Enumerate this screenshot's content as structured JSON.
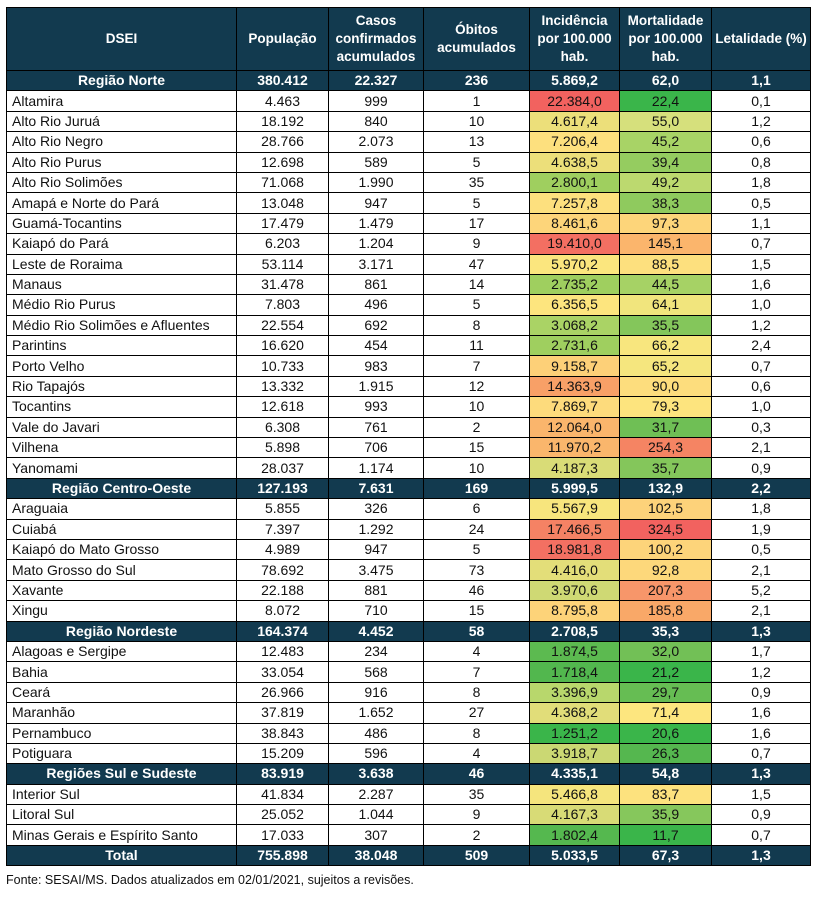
{
  "headers": [
    "DSEI",
    "População",
    "Casos confirmados acumulados",
    "Óbitos acumulados",
    "Incidência por 100.000 hab.",
    "Mortalidade por 100.000 hab.",
    "Letalidade (%)"
  ],
  "color_scale": {
    "green": "#3ab54a",
    "light_green": "#9fcf5f",
    "yellow": "#fde77f",
    "orange": "#f9a565",
    "red": "#f2625f"
  },
  "sections": [
    {
      "region": {
        "name": "Região Norte",
        "pop": "380.412",
        "cases": "22.327",
        "deaths": "236",
        "inc": "5.869,2",
        "mort": "62,0",
        "let": "1,1"
      },
      "rows": [
        {
          "name": "Altamira",
          "pop": "4.463",
          "cases": "999",
          "deaths": "1",
          "inc": "22.384,0",
          "mort": "22,4",
          "let": "0,1",
          "inc_color": "#f2625f",
          "mort_color": "#3ab54a"
        },
        {
          "name": "Alto Rio Juruá",
          "pop": "18.192",
          "cases": "840",
          "deaths": "10",
          "inc": "4.617,4",
          "mort": "55,0",
          "let": "1,2",
          "inc_color": "#ecdf7a",
          "mort_color": "#d6e07c"
        },
        {
          "name": "Alto Rio Negro",
          "pop": "28.766",
          "cases": "2.073",
          "deaths": "13",
          "inc": "7.206,4",
          "mort": "45,2",
          "let": "0,6",
          "inc_color": "#fde07e",
          "mort_color": "#a8d366"
        },
        {
          "name": "Alto Rio Purus",
          "pop": "12.698",
          "cases": "589",
          "deaths": "5",
          "inc": "4.638,5",
          "mort": "39,4",
          "let": "0,8",
          "inc_color": "#ecdf7a",
          "mort_color": "#95cc60"
        },
        {
          "name": "Alto Rio Solimões",
          "pop": "71.068",
          "cases": "1.990",
          "deaths": "35",
          "inc": "2.800,1",
          "mort": "49,2",
          "let": "1,8",
          "inc_color": "#9fcf5f",
          "mort_color": "#bcd96f"
        },
        {
          "name": "Amapá e Norte do Pará",
          "pop": "13.048",
          "cases": "947",
          "deaths": "5",
          "inc": "7.257,8",
          "mort": "38,3",
          "let": "0,5",
          "inc_color": "#fde07e",
          "mort_color": "#8fca5e"
        },
        {
          "name": "Guamá-Tocantins",
          "pop": "17.479",
          "cases": "1.479",
          "deaths": "17",
          "inc": "8.461,6",
          "mort": "97,3",
          "let": "1,1",
          "inc_color": "#fdd57a",
          "mort_color": "#fdd57a"
        },
        {
          "name": "Kaiapó do Pará",
          "pop": "6.203",
          "cases": "1.204",
          "deaths": "9",
          "inc": "19.410,0",
          "mort": "145,1",
          "let": "0,7",
          "inc_color": "#f36f62",
          "mort_color": "#fbb56c"
        },
        {
          "name": "Leste de Roraima",
          "pop": "53.114",
          "cases": "3.171",
          "deaths": "47",
          "inc": "5.970,2",
          "mort": "88,5",
          "let": "1,5",
          "inc_color": "#fbe67e",
          "mort_color": "#fde07e"
        },
        {
          "name": "Manaus",
          "pop": "31.478",
          "cases": "861",
          "deaths": "14",
          "inc": "2.735,2",
          "mort": "44,5",
          "let": "1,6",
          "inc_color": "#9fcf5f",
          "mort_color": "#a6d265"
        },
        {
          "name": "Médio Rio Purus",
          "pop": "7.803",
          "cases": "496",
          "deaths": "5",
          "inc": "6.356,5",
          "mort": "64,1",
          "let": "1,0",
          "inc_color": "#fde57e",
          "mort_color": "#f1e57d"
        },
        {
          "name": "Médio Rio Solimões e Afluentes",
          "pop": "22.554",
          "cases": "692",
          "deaths": "8",
          "inc": "3.068,2",
          "mort": "35,5",
          "let": "1,2",
          "inc_color": "#aad365",
          "mort_color": "#84c65b"
        },
        {
          "name": "Parintins",
          "pop": "16.620",
          "cases": "454",
          "deaths": "11",
          "inc": "2.731,6",
          "mort": "66,2",
          "let": "2,4",
          "inc_color": "#9fcf5f",
          "mort_color": "#f8e67e"
        },
        {
          "name": "Porto Velho",
          "pop": "10.733",
          "cases": "983",
          "deaths": "7",
          "inc": "9.158,7",
          "mort": "65,2",
          "let": "0,7",
          "inc_color": "#fdd078",
          "mort_color": "#f5e67e"
        },
        {
          "name": "Rio Tapajós",
          "pop": "13.332",
          "cases": "1.915",
          "deaths": "12",
          "inc": "14.363,9",
          "mort": "90,0",
          "let": "0,6",
          "inc_color": "#f8a067",
          "mort_color": "#fddd7d"
        },
        {
          "name": "Tocantins",
          "pop": "12.618",
          "cases": "993",
          "deaths": "10",
          "inc": "7.869,7",
          "mort": "79,3",
          "let": "1,0",
          "inc_color": "#fddb7c",
          "mort_color": "#fde47e"
        },
        {
          "name": "Vale do Javari",
          "pop": "6.308",
          "cases": "761",
          "deaths": "2",
          "inc": "12.064,0",
          "mort": "31,7",
          "let": "0,3",
          "inc_color": "#fab56c",
          "mort_color": "#6fbf55"
        },
        {
          "name": "Vilhena",
          "pop": "5.898",
          "cases": "706",
          "deaths": "15",
          "inc": "11.970,2",
          "mort": "254,3",
          "let": "2,1",
          "inc_color": "#fab66c",
          "mort_color": "#f58463"
        },
        {
          "name": "Yanomami",
          "pop": "28.037",
          "cases": "1.174",
          "deaths": "10",
          "inc": "4.187,3",
          "mort": "35,7",
          "let": "0,9",
          "inc_color": "#d9dc77",
          "mort_color": "#84c65b"
        }
      ]
    },
    {
      "region": {
        "name": "Região Centro-Oeste",
        "pop": "127.193",
        "cases": "7.631",
        "deaths": "169",
        "inc": "5.999,5",
        "mort": "132,9",
        "let": "2,2"
      },
      "rows": [
        {
          "name": "Araguaia",
          "pop": "5.855",
          "cases": "326",
          "deaths": "6",
          "inc": "5.567,9",
          "mort": "102,5",
          "let": "1,8",
          "inc_color": "#f7e57d",
          "mort_color": "#fdd27a"
        },
        {
          "name": "Cuiabá",
          "pop": "7.397",
          "cases": "1.292",
          "deaths": "24",
          "inc": "17.466,5",
          "mort": "324,5",
          "let": "1,9",
          "inc_color": "#f58264",
          "mort_color": "#f2625f"
        },
        {
          "name": "Kaiapó do Mato Grosso",
          "pop": "4.989",
          "cases": "947",
          "deaths": "5",
          "inc": "18.981,8",
          "mort": "100,2",
          "let": "0,5",
          "inc_color": "#f37062",
          "mort_color": "#fdd47a"
        },
        {
          "name": "Mato Grosso do Sul",
          "pop": "78.692",
          "cases": "3.475",
          "deaths": "73",
          "inc": "4.416,0",
          "mort": "92,8",
          "let": "2,1",
          "inc_color": "#e3de79",
          "mort_color": "#fdd87b"
        },
        {
          "name": "Xavante",
          "pop": "22.188",
          "cases": "881",
          "deaths": "46",
          "inc": "3.970,6",
          "mort": "207,3",
          "let": "5,2",
          "inc_color": "#cfd974",
          "mort_color": "#f7966a"
        },
        {
          "name": "Xingu",
          "pop": "8.072",
          "cases": "710",
          "deaths": "15",
          "inc": "8.795,8",
          "mort": "185,8",
          "let": "2,1",
          "inc_color": "#fdd379",
          "mort_color": "#f9a868"
        }
      ]
    },
    {
      "region": {
        "name": "Região Nordeste",
        "pop": "164.374",
        "cases": "4.452",
        "deaths": "58",
        "inc": "2.708,5",
        "mort": "35,3",
        "let": "1,3"
      },
      "rows": [
        {
          "name": "Alagoas e Sergipe",
          "pop": "12.483",
          "cases": "234",
          "deaths": "4",
          "inc": "1.874,5",
          "mort": "32,0",
          "let": "1,7",
          "inc_color": "#5cba50",
          "mort_color": "#72c056"
        },
        {
          "name": "Bahia",
          "pop": "33.054",
          "cases": "568",
          "deaths": "7",
          "inc": "1.718,4",
          "mort": "21,2",
          "let": "1,2",
          "inc_color": "#52b74e",
          "mort_color": "#3ab54a"
        },
        {
          "name": "Ceará",
          "pop": "26.966",
          "cases": "916",
          "deaths": "8",
          "inc": "3.396,9",
          "mort": "29,7",
          "let": "0,9",
          "inc_color": "#b8d76c",
          "mort_color": "#66bd53"
        },
        {
          "name": "Maranhão",
          "pop": "37.819",
          "cases": "1.652",
          "deaths": "27",
          "inc": "4.368,2",
          "mort": "71,4",
          "let": "1,6",
          "inc_color": "#e1dd79",
          "mort_color": "#fde67f"
        },
        {
          "name": "Pernambuco",
          "pop": "38.843",
          "cases": "486",
          "deaths": "8",
          "inc": "1.251,2",
          "mort": "20,6",
          "let": "1,6",
          "inc_color": "#3ab54a",
          "mort_color": "#3ab54a"
        },
        {
          "name": "Potiguara",
          "pop": "15.209",
          "cases": "596",
          "deaths": "4",
          "inc": "3.918,7",
          "mort": "26,3",
          "let": "0,7",
          "inc_color": "#cbd873",
          "mort_color": "#55b74f"
        }
      ]
    },
    {
      "region": {
        "name": "Regiões Sul e Sudeste",
        "pop": "83.919",
        "cases": "3.638",
        "deaths": "46",
        "inc": "4.335,1",
        "mort": "54,8",
        "let": "1,3"
      },
      "rows": [
        {
          "name": "Interior Sul",
          "pop": "41.834",
          "cases": "2.287",
          "deaths": "35",
          "inc": "5.466,8",
          "mort": "83,7",
          "let": "1,5",
          "inc_color": "#f5e57d",
          "mort_color": "#fde27e"
        },
        {
          "name": "Litoral Sul",
          "pop": "25.052",
          "cases": "1.044",
          "deaths": "9",
          "inc": "4.167,3",
          "mort": "35,9",
          "let": "0,9",
          "inc_color": "#d8db76",
          "mort_color": "#86c75c"
        },
        {
          "name": "Minas Gerais e Espírito Santo",
          "pop": "17.033",
          "cases": "307",
          "deaths": "2",
          "inc": "1.802,4",
          "mort": "11,7",
          "let": "0,7",
          "inc_color": "#55b84f",
          "mort_color": "#3ab54a"
        }
      ]
    }
  ],
  "total": {
    "name": "Total",
    "pop": "755.898",
    "cases": "38.048",
    "deaths": "509",
    "inc": "5.033,5",
    "mort": "67,3",
    "let": "1,3"
  },
  "source": "Fonte: SESAI/MS. Dados atualizados em 02/01/2021, sujeitos a revisões."
}
